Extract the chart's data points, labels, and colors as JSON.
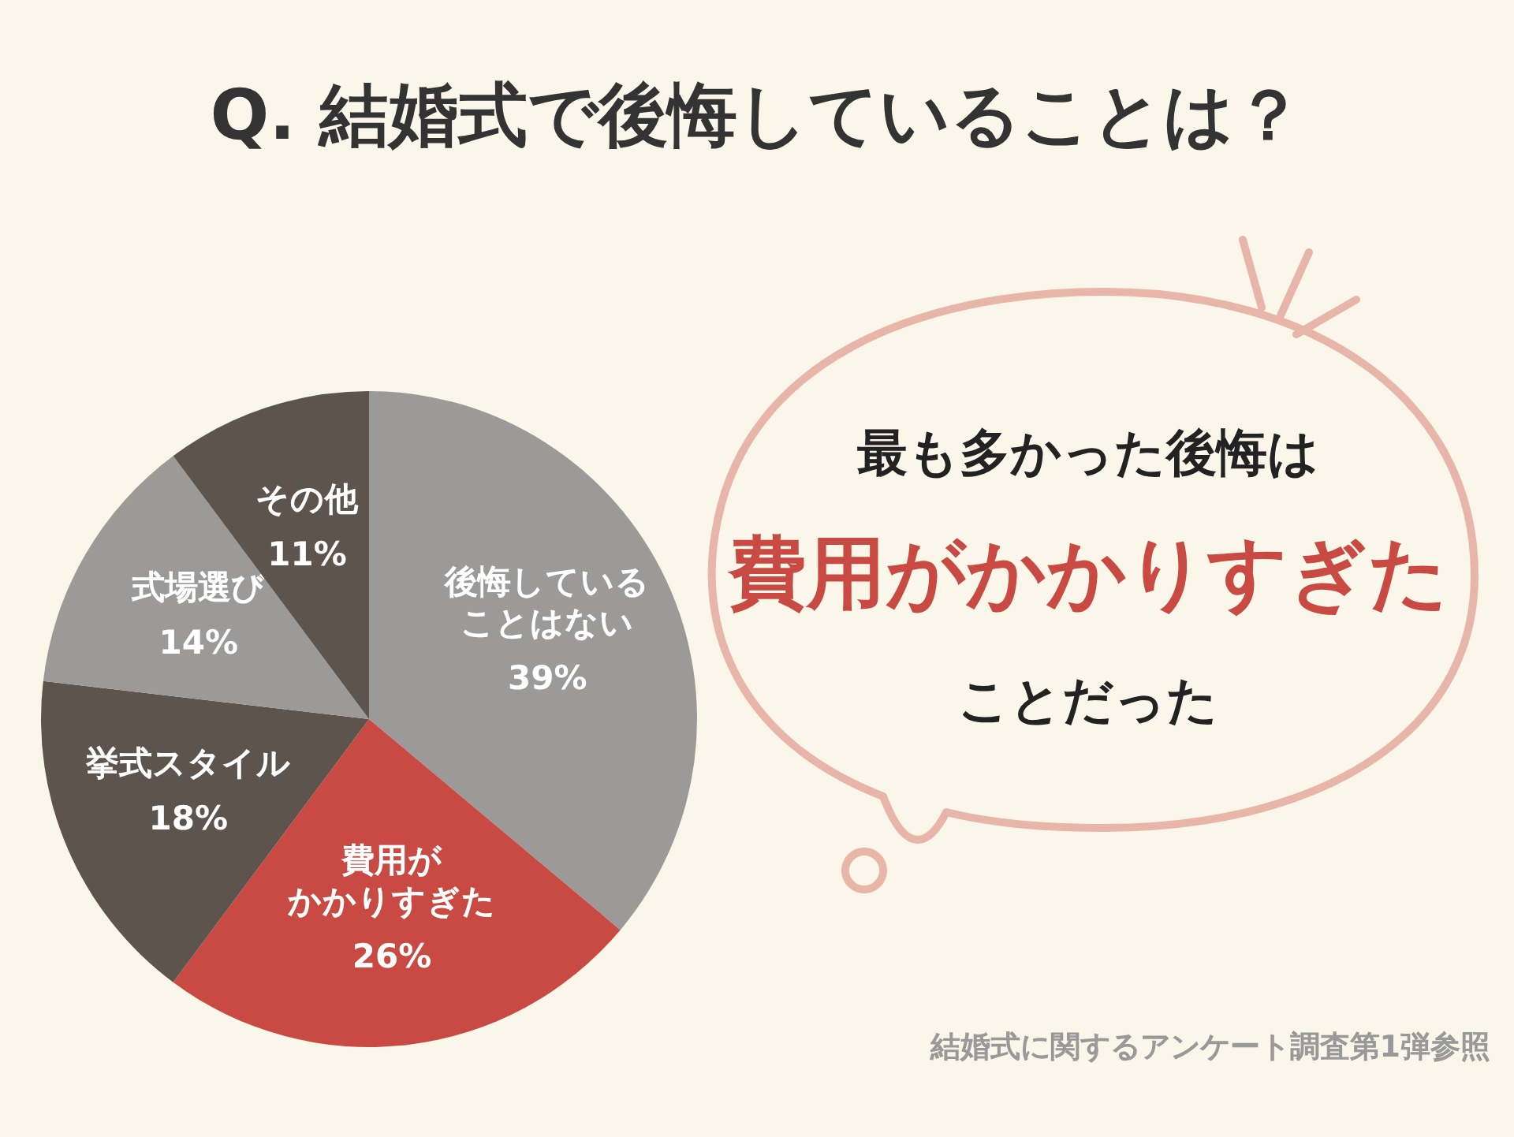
{
  "chart_data": {
    "type": "pie",
    "title": "Q. 結婚式で後悔していることは？",
    "categories": [
      "後悔していることはない",
      "費用がかかりすぎた",
      "挙式スタイル",
      "式場選び",
      "その他"
    ],
    "values": [
      39,
      26,
      18,
      14,
      11
    ],
    "value_labels": [
      "39%",
      "26%",
      "18%",
      "14%",
      "11%"
    ],
    "colors": [
      "#9b9a99",
      "#c84a42",
      "#5d544d",
      "#9b9a99",
      "#5d544d"
    ],
    "annotations": [
      "最も多かった後悔は",
      "費用がかかりすぎた",
      "ことだった",
      "結婚式に関するアンケート調査第1弾参照"
    ]
  }
}
